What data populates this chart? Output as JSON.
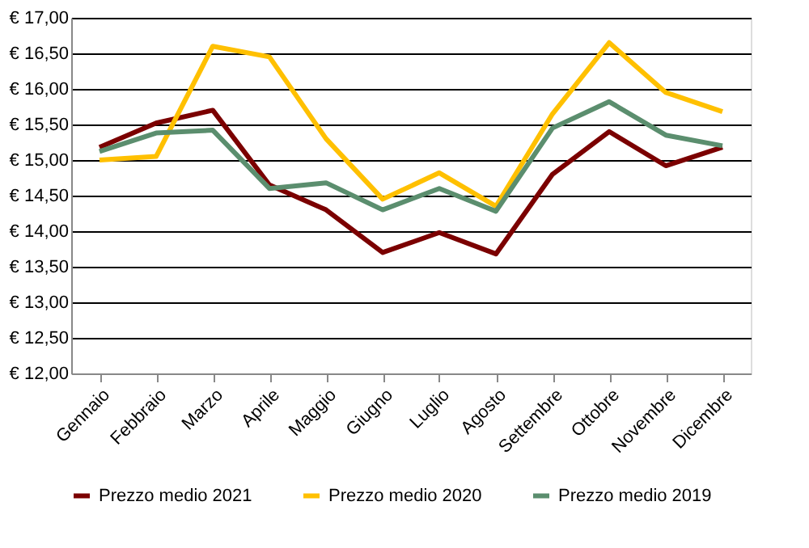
{
  "chart_data": {
    "type": "line",
    "categories": [
      "Gennaio",
      "Febbraio",
      "Marzo",
      "Aprile",
      "Maggio",
      "Giugno",
      "Luglio",
      "Agosto",
      "Settembre",
      "Ottobre",
      "Novembre",
      "Dicembre"
    ],
    "series": [
      {
        "name": "Prezzo medio 2021",
        "color": "#7b0000",
        "values": [
          15.18,
          15.52,
          15.7,
          14.65,
          14.3,
          13.7,
          13.98,
          13.68,
          14.8,
          15.4,
          14.92,
          15.18
        ]
      },
      {
        "name": "Prezzo medio 2020",
        "color": "#ffc000",
        "values": [
          15.0,
          15.05,
          16.6,
          16.45,
          15.3,
          14.45,
          14.82,
          14.35,
          15.65,
          16.65,
          15.95,
          15.68
        ]
      },
      {
        "name": "Prezzo medio 2019",
        "color": "#5b8e6e",
        "values": [
          15.12,
          15.38,
          15.42,
          14.6,
          14.68,
          14.3,
          14.6,
          14.28,
          15.45,
          15.82,
          15.35,
          15.2
        ]
      }
    ],
    "ylim": [
      12,
      17
    ],
    "yticks": [
      {
        "value": 12,
        "label": "€ 12,00"
      },
      {
        "value": 12.5,
        "label": "€ 12,50"
      },
      {
        "value": 13,
        "label": "€ 13,00"
      },
      {
        "value": 13.5,
        "label": "€ 13,50"
      },
      {
        "value": 14,
        "label": "€ 14,00"
      },
      {
        "value": 14.5,
        "label": "€ 14,50"
      },
      {
        "value": 15,
        "label": "€ 15,00"
      },
      {
        "value": 15.5,
        "label": "€ 15,50"
      },
      {
        "value": 16,
        "label": "€ 16,00"
      },
      {
        "value": 16.5,
        "label": "€ 16,50"
      },
      {
        "value": 17,
        "label": "€ 17,00"
      }
    ],
    "grid": "y",
    "legend": "bottom",
    "marker": "none",
    "line_style": "solid"
  }
}
